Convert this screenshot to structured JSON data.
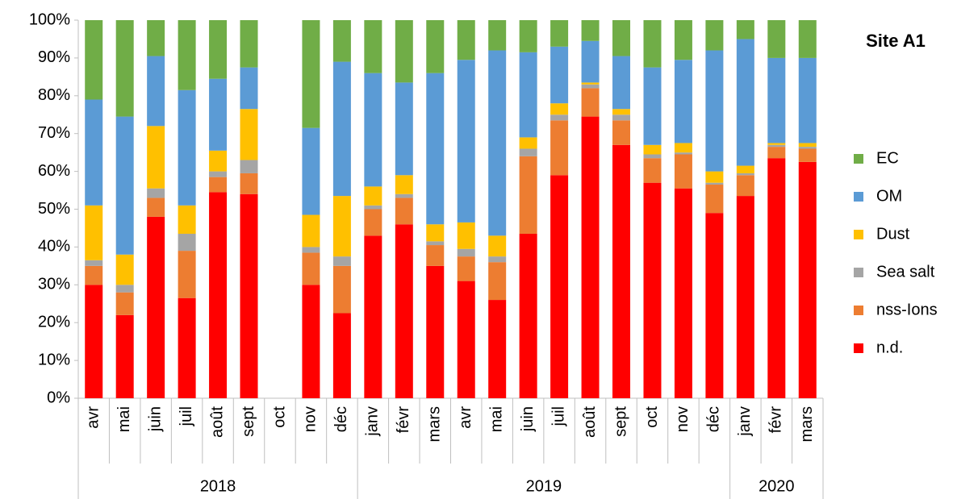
{
  "chart_data": {
    "type": "stacked_bar",
    "title": "Site A1",
    "groups": [
      {
        "label": "2018",
        "categories": [
          "avr",
          "mai",
          "juin",
          "juil",
          "août",
          "sept",
          "oct",
          "nov",
          "déc"
        ]
      },
      {
        "label": "2019",
        "categories": [
          "janv",
          "févr",
          "mars",
          "avr",
          "mai",
          "juin",
          "juil",
          "août",
          "sept",
          "oct",
          "nov",
          "déc"
        ]
      },
      {
        "label": "2020",
        "categories": [
          "janv",
          "févr",
          "mars"
        ]
      }
    ],
    "series": [
      {
        "name": "n.d.",
        "color": "#ff0000",
        "values": [
          30,
          22,
          48,
          26.5,
          54.5,
          54,
          null,
          30,
          22.5,
          43,
          46,
          35,
          31,
          26,
          43.5,
          59,
          74.5,
          67,
          57,
          55.5,
          49,
          53.5,
          63.5,
          62.5
        ]
      },
      {
        "name": "nss-Ions",
        "color": "#ed7d31",
        "values": [
          5,
          6,
          5,
          12.5,
          4,
          5.5,
          null,
          8.5,
          12.5,
          7,
          7,
          5.5,
          6.5,
          10,
          20.5,
          14.5,
          7.5,
          6.5,
          6.5,
          9,
          7.5,
          5.5,
          3,
          3.5
        ]
      },
      {
        "name": "Sea salt",
        "color": "#a5a5a5",
        "values": [
          1.5,
          2,
          2.5,
          4.5,
          1.5,
          3.5,
          null,
          1.5,
          2.5,
          1,
          1,
          1,
          2,
          1.5,
          2,
          1.5,
          1,
          1.5,
          1,
          0.5,
          0.5,
          0.5,
          0.5,
          0.5
        ]
      },
      {
        "name": "Dust",
        "color": "#ffc000",
        "values": [
          14.5,
          8,
          16.5,
          7.5,
          5.5,
          13.5,
          null,
          8.5,
          16,
          5,
          5,
          4.5,
          7,
          5.5,
          3,
          3,
          0.5,
          1.5,
          2.5,
          2.5,
          3,
          2,
          0.5,
          1
        ]
      },
      {
        "name": "OM",
        "color": "#5b9bd5",
        "values": [
          28,
          36.5,
          18.5,
          30.5,
          19,
          11,
          null,
          23,
          35.5,
          30,
          24.5,
          40,
          43,
          49,
          22.5,
          15,
          11,
          14,
          20.5,
          22,
          32,
          33.5,
          22.5,
          22.5
        ]
      },
      {
        "name": "EC",
        "color": "#70ad47",
        "values": [
          21,
          25.5,
          9.5,
          18.5,
          15.5,
          12.5,
          null,
          28.5,
          11,
          14,
          16.5,
          14,
          10.5,
          8,
          8.5,
          7,
          5.5,
          9.5,
          12.5,
          10.5,
          8,
          5,
          10,
          10
        ]
      }
    ],
    "ylim": [
      0,
      100
    ],
    "yticks": [
      {
        "value": 0,
        "label": "0%"
      },
      {
        "value": 10,
        "label": "10%"
      },
      {
        "value": 20,
        "label": "20%"
      },
      {
        "value": 30,
        "label": "30%"
      },
      {
        "value": 40,
        "label": "40%"
      },
      {
        "value": 50,
        "label": "50%"
      },
      {
        "value": 60,
        "label": "60%"
      },
      {
        "value": 70,
        "label": "70%"
      },
      {
        "value": 80,
        "label": "80%"
      },
      {
        "value": 90,
        "label": "90%"
      },
      {
        "value": 100,
        "label": "100%"
      }
    ],
    "grid": false,
    "legend": "right"
  }
}
